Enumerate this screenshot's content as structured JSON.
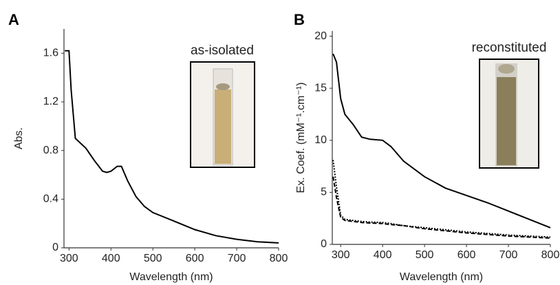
{
  "chart_data": [
    {
      "type": "line",
      "panel_label": "A",
      "annotation": "as-isolated",
      "xlabel": "Wavelength (nm)",
      "ylabel": "Abs.",
      "xlim": [
        288,
        800
      ],
      "ylim": [
        0,
        1.8
      ],
      "xticks": [
        300,
        400,
        500,
        600,
        700,
        800
      ],
      "yticks": [
        0,
        0.4,
        0.8,
        1.2,
        1.6
      ],
      "x": [
        290,
        300,
        305,
        315,
        340,
        360,
        380,
        390,
        400,
        415,
        425,
        440,
        460,
        480,
        500,
        550,
        600,
        650,
        700,
        750,
        800
      ],
      "series": [
        {
          "color": "#000000",
          "dash": "solid",
          "values": [
            1.62,
            1.62,
            1.3,
            0.9,
            0.82,
            0.72,
            0.63,
            0.62,
            0.63,
            0.67,
            0.67,
            0.55,
            0.42,
            0.34,
            0.29,
            0.22,
            0.15,
            0.1,
            0.07,
            0.05,
            0.04
          ]
        }
      ]
    },
    {
      "type": "line",
      "panel_label": "B",
      "annotation": "reconstituted",
      "xlabel": "Wavelength (nm)",
      "ylabel": "Ex. Coef. (mM⁻¹.cm⁻¹)",
      "xlim": [
        280,
        800
      ],
      "ylim": [
        0,
        20.5
      ],
      "xticks": [
        300,
        400,
        500,
        600,
        700,
        800
      ],
      "yticks": [
        0,
        5,
        10,
        15,
        20
      ],
      "x": [
        282,
        290,
        300,
        310,
        330,
        350,
        370,
        400,
        420,
        450,
        500,
        550,
        600,
        650,
        700,
        750,
        800
      ],
      "series": [
        {
          "color": "#000000",
          "dash": "solid",
          "values": [
            18.3,
            17.5,
            14,
            12.5,
            11.5,
            10.3,
            10.1,
            10,
            9.4,
            8,
            6.5,
            5.4,
            4.7,
            4,
            3.2,
            2.4,
            1.6
          ]
        },
        {
          "color": "#000000",
          "dash": "dotted",
          "values": [
            8.1,
            5.5,
            2.8,
            2.4,
            2.3,
            2.2,
            2.15,
            2.1,
            2.0,
            1.8,
            1.6,
            1.4,
            1.2,
            1.05,
            0.9,
            0.8,
            0.7
          ]
        },
        {
          "color": "#000000",
          "dash": "dashed",
          "values": [
            6.5,
            4.5,
            2.6,
            2.3,
            2.2,
            2.1,
            2.05,
            2.0,
            1.9,
            1.8,
            1.5,
            1.3,
            1.1,
            0.95,
            0.8,
            0.7,
            0.6
          ]
        }
      ]
    }
  ]
}
